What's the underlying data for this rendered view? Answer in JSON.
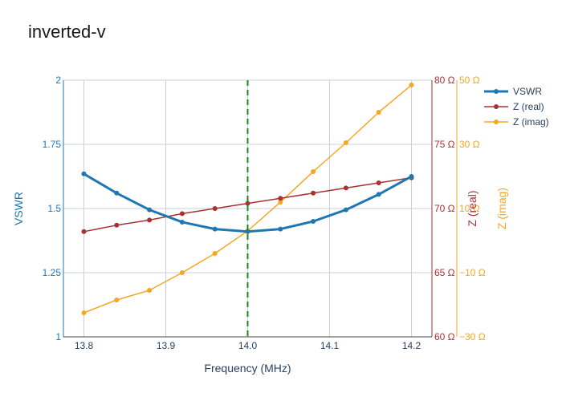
{
  "chart_data": {
    "type": "line",
    "title": "inverted-v",
    "xlabel": "Frequency (MHz)",
    "x_ticks": [
      "13.8",
      "13.9",
      "14.0",
      "14.1",
      "14.2"
    ],
    "x_tick_values": [
      13.8,
      13.9,
      14.0,
      14.1,
      14.2
    ],
    "xlim": [
      13.775,
      14.225
    ],
    "marker_line_x": 14.0,
    "axes": {
      "vswr": {
        "label": "VSWR",
        "range": [
          1,
          2
        ],
        "ticks": [
          "1",
          "1.25",
          "1.5",
          "1.75",
          "2"
        ],
        "tick_values": [
          1,
          1.25,
          1.5,
          1.75,
          2
        ],
        "color": "#1f77b4"
      },
      "zreal": {
        "label": "Z (real)",
        "range": [
          60,
          80
        ],
        "ticks": [
          "60 Ω",
          "65 Ω",
          "70 Ω",
          "75 Ω",
          "80 Ω"
        ],
        "tick_values": [
          60,
          65,
          70,
          75,
          80
        ],
        "color": "#a83232"
      },
      "zimag": {
        "label": "Z (imag)",
        "range": [
          -30,
          50
        ],
        "ticks": [
          "−30 Ω",
          "−10 Ω",
          "10 Ω",
          "30 Ω",
          "50 Ω"
        ],
        "tick_values": [
          -30,
          -10,
          10,
          30,
          50
        ],
        "color": "#f5a623"
      }
    },
    "x": [
      13.8,
      13.84,
      13.88,
      13.92,
      13.96,
      14.0,
      14.04,
      14.08,
      14.12,
      14.16,
      14.2
    ],
    "series": [
      {
        "name": "VSWR",
        "axis": "vswr",
        "color": "#1f77b4",
        "values": [
          1.635,
          1.56,
          1.495,
          1.447,
          1.42,
          1.41,
          1.42,
          1.45,
          1.495,
          1.555,
          1.625
        ]
      },
      {
        "name": "Z (real)",
        "axis": "zreal",
        "color": "#a83232",
        "values": [
          68.2,
          68.7,
          69.1,
          69.6,
          70.0,
          70.4,
          70.8,
          71.2,
          71.6,
          72.0,
          72.4
        ]
      },
      {
        "name": "Z (imag)",
        "axis": "zimag",
        "color": "#f5a623",
        "values": [
          -22.5,
          -18.5,
          -15.5,
          -10.0,
          -4.0,
          3.0,
          12.0,
          21.5,
          30.5,
          40.0,
          48.5
        ]
      }
    ],
    "grid": true,
    "legend_position": "top-right"
  }
}
